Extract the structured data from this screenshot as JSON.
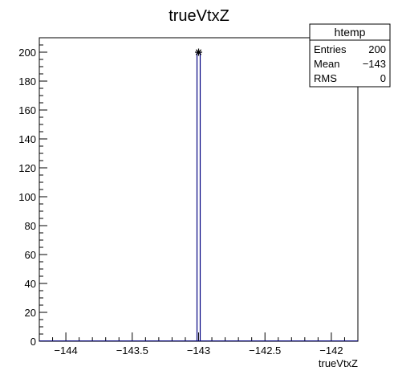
{
  "chart_data": {
    "type": "bar",
    "title": "trueVtxZ",
    "xlabel": "trueVtxZ",
    "ylabel": "",
    "xlim": [
      -144.2,
      -141.8
    ],
    "ylim": [
      0,
      210
    ],
    "x_ticks": [
      -144,
      -143.5,
      -143,
      -142.5,
      -142
    ],
    "x_tick_labels": [
      "−144",
      "−143.5",
      "−143",
      "−142.5",
      "−142"
    ],
    "y_ticks": [
      0,
      20,
      40,
      60,
      80,
      100,
      120,
      140,
      160,
      180,
      200
    ],
    "y_tick_labels": [
      "0",
      "20",
      "40",
      "60",
      "80",
      "100",
      "120",
      "140",
      "160",
      "180",
      "200"
    ],
    "bins": [
      {
        "x_low": -143.012,
        "x_high": -142.988,
        "value": 200
      }
    ],
    "marker": {
      "x": -143,
      "y": 200,
      "symbol": "*"
    },
    "grid": false,
    "line_color": "#000080",
    "stats_box": {
      "title": "htemp",
      "rows": [
        {
          "label": "Entries",
          "value": "200"
        },
        {
          "label": "Mean",
          "value": "−143"
        },
        {
          "label": "RMS",
          "value": "0"
        }
      ]
    }
  }
}
